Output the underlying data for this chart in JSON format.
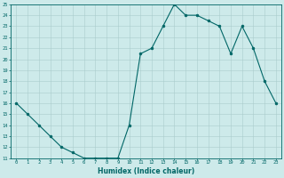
{
  "x": [
    0,
    1,
    2,
    3,
    4,
    5,
    6,
    7,
    8,
    9,
    10,
    11,
    12,
    13,
    14,
    15,
    16,
    17,
    18,
    19,
    20,
    21,
    22,
    23
  ],
  "y": [
    16,
    15,
    14,
    13,
    12,
    11.5,
    11,
    11,
    11,
    11,
    14,
    20.5,
    21,
    23,
    25,
    24,
    24,
    23.5,
    23,
    20.5,
    23,
    21,
    18,
    16
  ],
  "line_color": "#006666",
  "marker": "o",
  "bg_color": "#cdeaea",
  "grid_color": "#aacccc",
  "xlabel": "Humidex (Indice chaleur)",
  "ylim": [
    11,
    25
  ],
  "xlim": [
    -0.5,
    23.5
  ],
  "yticks": [
    11,
    12,
    13,
    14,
    15,
    16,
    17,
    18,
    19,
    20,
    21,
    22,
    23,
    24,
    25
  ],
  "xticks": [
    0,
    1,
    2,
    3,
    4,
    5,
    6,
    7,
    8,
    9,
    10,
    11,
    12,
    13,
    14,
    15,
    16,
    17,
    18,
    19,
    20,
    21,
    22,
    23
  ]
}
